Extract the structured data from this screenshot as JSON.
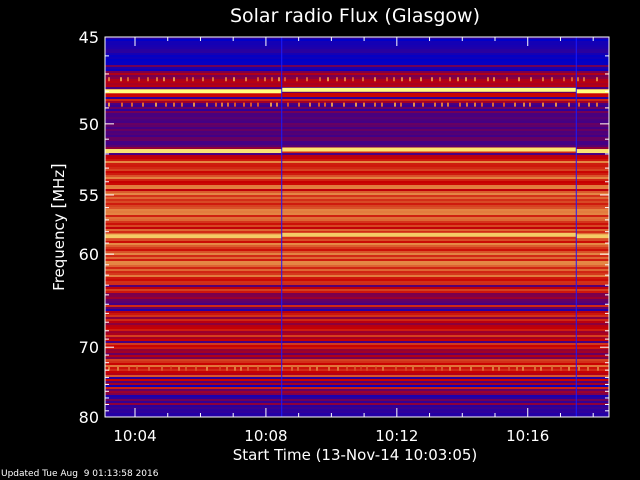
{
  "chart_data": {
    "type": "heatmap",
    "title": "Solar radio Flux (Glasgow)",
    "xlabel": "Start Time (13-Nov-14 10:03:05)",
    "ylabel_text": "Frequency ",
    "ylabel_unit": "MHz",
    "x_start_time": "10:03:05",
    "xlim_minutes": [
      0,
      15.4
    ],
    "x_ticks": [
      {
        "label": "10:04",
        "minute": 0.917
      },
      {
        "label": "10:08",
        "minute": 4.917
      },
      {
        "label": "10:12",
        "minute": 8.917
      },
      {
        "label": "10:16",
        "minute": 12.917
      }
    ],
    "x_minor_tick_interval_minutes": 1,
    "y_axis": {
      "scale": "reciprocal",
      "ylim_mhz": [
        45,
        80
      ],
      "tick_values": [
        45,
        50,
        55,
        60,
        70,
        80
      ],
      "tick_labels": [
        "45",
        "50",
        "55",
        "60",
        "70",
        "80"
      ],
      "minor_tick_values": [
        46,
        47,
        48,
        49,
        51,
        52,
        53,
        54,
        56,
        57,
        58,
        59,
        61,
        62,
        63,
        64,
        65,
        66,
        67,
        68,
        69,
        71,
        72,
        73,
        74,
        75,
        76,
        77,
        78,
        79
      ]
    },
    "segment_boundaries_minutes": [
      5.4,
      14.4
    ],
    "colors": {
      "low": "#0000c8",
      "mid": "#c80000",
      "high": "#ffff80"
    },
    "features": [
      {
        "kind": "bright_band",
        "freq_mhz": 48.0,
        "intensity": 1.0
      },
      {
        "kind": "bright_band",
        "freq_mhz": 51.8,
        "intensity": 0.95
      },
      {
        "kind": "bright_band",
        "freq_mhz": 58.4,
        "intensity": 0.9
      },
      {
        "kind": "dash_band",
        "freq_mhz": 47.3,
        "intensity": 0.8
      },
      {
        "kind": "dash_band",
        "freq_mhz": 48.8,
        "intensity": 0.8
      },
      {
        "kind": "dash_band",
        "freq_mhz": 72.8,
        "intensity": 0.75
      },
      {
        "kind": "low_band",
        "freq_min_mhz": 45.0,
        "freq_max_mhz": 46.5,
        "level": 0.05
      },
      {
        "kind": "low_band",
        "freq_min_mhz": 49.3,
        "freq_max_mhz": 51.5,
        "level": 0.2
      },
      {
        "kind": "high_band",
        "freq_min_mhz": 52.2,
        "freq_max_mhz": 63.0,
        "level": 0.62
      },
      {
        "kind": "mixed_band",
        "freq_min_mhz": 63.0,
        "freq_max_mhz": 71.5,
        "level": 0.35
      },
      {
        "kind": "high_band",
        "freq_min_mhz": 71.5,
        "freq_max_mhz": 74.0,
        "level": 0.58
      },
      {
        "kind": "mixed_band",
        "freq_min_mhz": 74.0,
        "freq_max_mhz": 78.0,
        "level": 0.3
      },
      {
        "kind": "low_band",
        "freq_min_mhz": 78.0,
        "freq_max_mhz": 80.0,
        "level": 0.12
      }
    ]
  },
  "footer": {
    "updated_text": "Updated Tue Aug  9 01:13:58 2016"
  }
}
